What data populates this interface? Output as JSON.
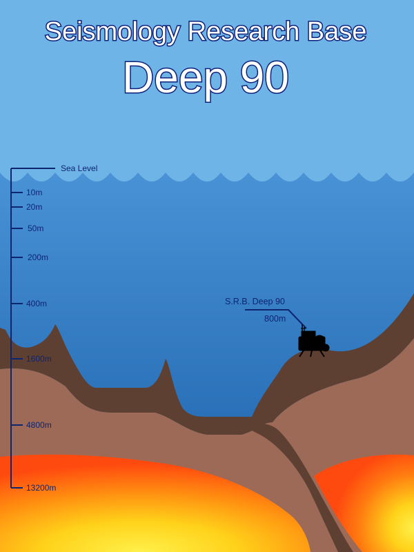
{
  "title": {
    "line1": "Seismology Research Base",
    "line2": "Deep 90"
  },
  "depth_scale": {
    "surface_label": "Sea Level",
    "markers": [
      "10m",
      "20m",
      "50m",
      "200m",
      "400m",
      "1600m",
      "4800m",
      "13200m"
    ]
  },
  "station": {
    "name": "S.R.B. Deep 90",
    "depth": "800m"
  },
  "colors": {
    "sky": "#6fb4e6",
    "sea_top": "#4a92d6",
    "sea_bottom": "#175ea8",
    "crust_dark": "#5e4033",
    "crust_light": "#9c6a56",
    "magma_outer": "#ff4a0f",
    "magma_inner": "#ffd21a",
    "label_color": "#0d2470"
  }
}
